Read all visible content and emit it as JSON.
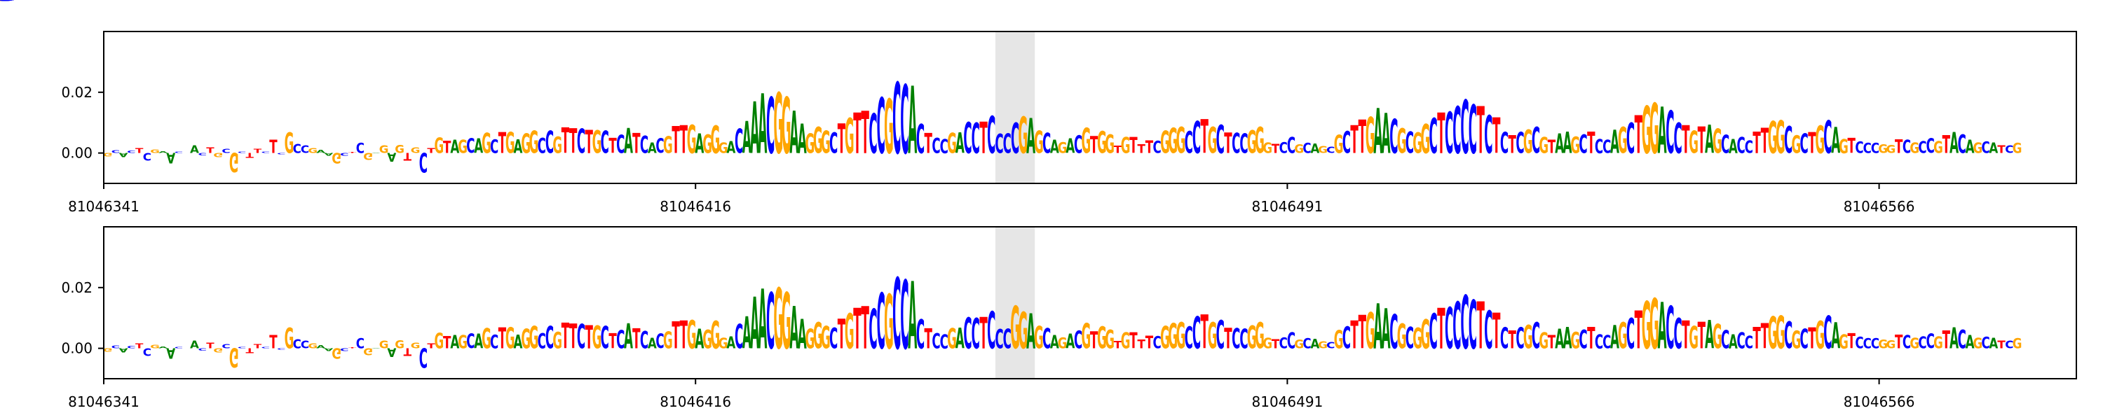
{
  "chart_data": [
    {
      "type": "sequence-logo",
      "title": "",
      "xlabel": "",
      "ylabel": "",
      "ylim": [
        -0.01,
        0.04
      ],
      "yticks": [
        {
          "value": 0.0,
          "label": "0.00"
        },
        {
          "value": 0.02,
          "label": "0.02"
        }
      ],
      "xlim": [
        81046341,
        81046591
      ],
      "xticks": [
        {
          "value": 81046341,
          "label": "81046341"
        },
        {
          "value": 81046416,
          "label": "81046416"
        },
        {
          "value": 81046491,
          "label": "81046491"
        },
        {
          "value": 81046566,
          "label": "81046566"
        }
      ],
      "highlight": {
        "start": 81046454,
        "end": 81046459
      },
      "sequence": "GCACTCGAACGACTGCGCTTCTCGCCGAAGCTCGAGAGTGCTGTAGCAGCTGAGGCCGTTCTGCTCATCACGTTGAGGGACAAACGGAAGGGCTGTTCCGCCACTCCGACCTCCCCGAGCAGACGTGGTGTTTCGGGCCTGCTCCGGGTCCGCAGCGCTTGAACGCGGCTCCCCTCTCTCGCGTAAGCTCCAGCTGGACCTGTAGCACCTTGGCGCTGCAGTCCCGGTCGCCGTACAGCATCGAGGCCA",
      "heights": [
        -0.0012,
        0.0009,
        -0.0014,
        0.0008,
        0.0016,
        -0.0026,
        0.0012,
        0.0006,
        -0.0034,
        0.0004,
        0.0001,
        0.0025,
        -0.0007,
        0.0018,
        -0.0013,
        0.0014,
        -0.0063,
        0.0005,
        -0.0017,
        0.0014,
        0.0004,
        0.0044,
        -0.0005,
        0.0068,
        0.003,
        0.0026,
        0.0017,
        0.0011,
        -0.0009,
        -0.0035,
        -0.0009,
        0.0003,
        0.0033,
        -0.0023,
        0.0002,
        0.0026,
        -0.0029,
        0.0027,
        -0.0026,
        0.0018,
        -0.0064,
        0.0016,
        0.0051,
        0.0041,
        0.0044,
        0.0044,
        0.0048,
        0.0048,
        0.0066,
        0.0045,
        0.0069,
        0.0069,
        0.0045,
        0.0065,
        0.0073,
        0.005,
        0.0073,
        0.0054,
        0.0084,
        0.0081,
        0.0079,
        0.0077,
        0.0075,
        0.0074,
        0.0049,
        0.006,
        0.0083,
        0.0066,
        0.0057,
        0.0035,
        0.0048,
        0.0056,
        0.0089,
        0.0092,
        0.0093,
        0.0064,
        0.0062,
        0.0091,
        0.0035,
        0.0039,
        0.0079,
        0.0105,
        0.0169,
        0.0197,
        0.0185,
        0.02,
        0.0185,
        0.014,
        0.0097,
        0.0065,
        0.0086,
        0.0074,
        0.0068,
        0.0098,
        0.0116,
        0.0133,
        0.014,
        0.013,
        0.0183,
        0.0179,
        0.0234,
        0.0226,
        0.0222,
        0.0096,
        0.0066,
        0.0049,
        0.0047,
        0.0066,
        0.0068,
        0.0102,
        0.01,
        0.0103,
        0.0122,
        0.0063,
        0.0064,
        0.0122,
        0.012,
        0.0115,
        0.0073,
        0.0066,
        0.0044,
        0.0036,
        0.0048,
        0.0058,
        0.0082,
        0.0055,
        0.0072,
        0.0061,
        0.0024,
        0.0053,
        0.0053,
        0.0029,
        0.0042,
        0.0041,
        0.0074,
        0.0083,
        0.0085,
        0.0072,
        0.0105,
        0.0111,
        0.0086,
        0.0093,
        0.0068,
        0.0066,
        0.0064,
        0.0075,
        0.0085,
        0.0035,
        0.003,
        0.0036,
        0.0053,
        0.0028,
        0.0033,
        0.0032,
        0.0023,
        0.0021,
        0.006,
        0.0072,
        0.0092,
        0.011,
        0.0118,
        0.0149,
        0.0132,
        0.0113,
        0.0081,
        0.007,
        0.0067,
        0.0096,
        0.0115,
        0.0133,
        0.0135,
        0.0154,
        0.0176,
        0.0161,
        0.0154,
        0.0124,
        0.0117,
        0.0069,
        0.0058,
        0.0069,
        0.0076,
        0.0085,
        0.0052,
        0.0044,
        0.0064,
        0.007,
        0.0054,
        0.0062,
        0.007,
        0.0046,
        0.0044,
        0.0076,
        0.0086,
        0.01,
        0.0124,
        0.0156,
        0.0165,
        0.0153,
        0.0139,
        0.01,
        0.0092,
        0.0073,
        0.0087,
        0.0093,
        0.008,
        0.006,
        0.0047,
        0.0052,
        0.0042,
        0.007,
        0.0083,
        0.0105,
        0.0108,
        0.0088,
        0.0059,
        0.0065,
        0.0069,
        0.0092,
        0.0108,
        0.0086,
        0.0047,
        0.005,
        0.0037,
        0.0033,
        0.0033,
        0.0028,
        0.0027,
        0.0045,
        0.0043,
        0.0035,
        0.0039,
        0.0048,
        0.0039,
        0.0058,
        0.0069,
        0.0062,
        0.0043,
        0.0034,
        0.0037,
        0.0034,
        0.0026,
        0.0026,
        0.0033
      ],
      "variant": {
        "position": 81046456,
        "base": "C",
        "height": 0.01
      }
    },
    {
      "type": "sequence-logo",
      "title": "",
      "xlabel": "",
      "ylabel": "",
      "ylim": [
        -0.01,
        0.04
      ],
      "yticks": [
        {
          "value": 0.0,
          "label": "0.00"
        },
        {
          "value": 0.02,
          "label": "0.02"
        }
      ],
      "xlim": [
        81046341,
        81046591
      ],
      "xticks": [
        {
          "value": 81046341,
          "label": "81046341"
        },
        {
          "value": 81046416,
          "label": "81046416"
        },
        {
          "value": 81046491,
          "label": "81046491"
        },
        {
          "value": 81046566,
          "label": "81046566"
        }
      ],
      "highlight": {
        "start": 81046454,
        "end": 81046459
      },
      "sequence": "GCACTCGAACGACTGCGCTTCTCGCCGAAGCTCGAGAGTGCTGTAGCAGCTGAGGCCGTTCTGCTCATCACGTTGAGGGACAAACGGAAGGGCTGTTCCGCCACTCCGACCTCCCCGAGCAGACGTGGTGTTTCGGGCCTGCTCCGGGTCCGCAGCGCTTGAACGCGGCTCCCCTCTCTCGCGTAAGCTCCAGCTGGACCTGTAGCACCTTGGCGCTGCAGTCCCGGTCGCCGTACAGCATCGAGGCCA",
      "heights": [
        -0.0012,
        0.0009,
        -0.0014,
        0.0008,
        0.0016,
        -0.0026,
        0.0012,
        0.0006,
        -0.0034,
        0.0004,
        0.0001,
        0.0025,
        -0.0007,
        0.0018,
        -0.0013,
        0.0014,
        -0.0063,
        0.0005,
        -0.0017,
        0.0014,
        0.0004,
        0.0044,
        -0.0005,
        0.0068,
        0.003,
        0.0026,
        0.0017,
        0.0011,
        -0.0009,
        -0.0035,
        -0.0009,
        0.0003,
        0.0033,
        -0.0023,
        0.0002,
        0.0026,
        -0.0029,
        0.0027,
        -0.0026,
        0.0018,
        -0.0064,
        0.0016,
        0.0051,
        0.0041,
        0.0044,
        0.0044,
        0.0048,
        0.0048,
        0.0066,
        0.0045,
        0.0069,
        0.0069,
        0.0045,
        0.0065,
        0.0073,
        0.005,
        0.0073,
        0.0054,
        0.0084,
        0.0081,
        0.0079,
        0.0077,
        0.0075,
        0.0074,
        0.0049,
        0.006,
        0.0083,
        0.0066,
        0.0057,
        0.0035,
        0.0048,
        0.0056,
        0.0089,
        0.0092,
        0.0093,
        0.0064,
        0.0062,
        0.0091,
        0.0035,
        0.0039,
        0.0079,
        0.0105,
        0.0169,
        0.0197,
        0.0185,
        0.02,
        0.0185,
        0.014,
        0.0097,
        0.0065,
        0.0086,
        0.0074,
        0.0068,
        0.0098,
        0.0116,
        0.0133,
        0.014,
        0.013,
        0.0183,
        0.0179,
        0.0234,
        0.0226,
        0.0222,
        0.0096,
        0.0066,
        0.0049,
        0.0047,
        0.0066,
        0.0068,
        0.0102,
        0.01,
        0.0103,
        0.0122,
        0.0063,
        0.0064,
        0.0122,
        0.012,
        0.0115,
        0.0073,
        0.0066,
        0.0044,
        0.0036,
        0.0048,
        0.0058,
        0.0082,
        0.0055,
        0.0072,
        0.0061,
        0.0024,
        0.0053,
        0.0053,
        0.0029,
        0.0042,
        0.0041,
        0.0074,
        0.0083,
        0.0085,
        0.0072,
        0.0105,
        0.0111,
        0.0086,
        0.0093,
        0.0068,
        0.0066,
        0.0064,
        0.0075,
        0.0085,
        0.0035,
        0.003,
        0.0036,
        0.0053,
        0.0028,
        0.0033,
        0.0032,
        0.0023,
        0.0021,
        0.006,
        0.0072,
        0.0092,
        0.011,
        0.0118,
        0.0149,
        0.0132,
        0.0113,
        0.0081,
        0.007,
        0.0067,
        0.0096,
        0.0115,
        0.0133,
        0.0135,
        0.0154,
        0.0176,
        0.0161,
        0.0154,
        0.0124,
        0.0117,
        0.0069,
        0.0058,
        0.0069,
        0.0076,
        0.0085,
        0.0052,
        0.0044,
        0.0064,
        0.007,
        0.0054,
        0.0062,
        0.007,
        0.0046,
        0.0044,
        0.0076,
        0.0086,
        0.01,
        0.0124,
        0.0156,
        0.0165,
        0.0153,
        0.0139,
        0.01,
        0.0092,
        0.0073,
        0.0087,
        0.0093,
        0.008,
        0.006,
        0.0047,
        0.0052,
        0.0042,
        0.007,
        0.0083,
        0.0105,
        0.0108,
        0.0088,
        0.0059,
        0.0065,
        0.0069,
        0.0092,
        0.0108,
        0.0086,
        0.0047,
        0.005,
        0.0037,
        0.0033,
        0.0033,
        0.0028,
        0.0027,
        0.0045,
        0.0043,
        0.0035,
        0.0039,
        0.0048,
        0.0039,
        0.0058,
        0.0069,
        0.0062,
        0.0043,
        0.0034,
        0.0037,
        0.0034,
        0.0026,
        0.0026,
        0.0033
      ],
      "variant": {
        "position": 81046456,
        "base": "G",
        "height": 0.014
      }
    }
  ],
  "colors": {
    "A": "#008000",
    "C": "#0000ff",
    "G": "#ffa500",
    "T": "#ff0000",
    "highlight": "#e6e6e6",
    "axis": "#000000",
    "text": "#000000"
  }
}
